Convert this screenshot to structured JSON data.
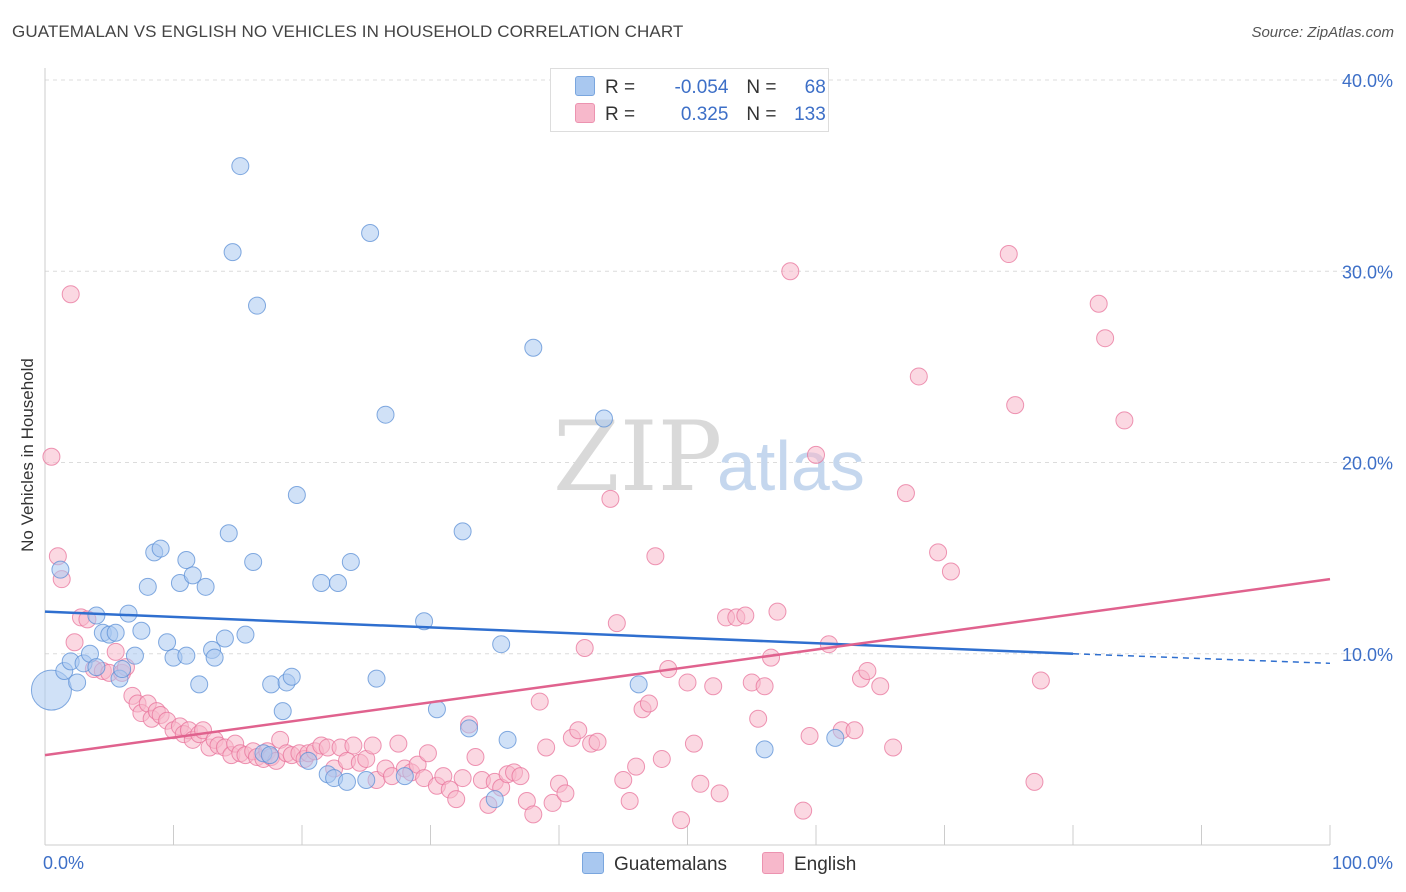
{
  "title": "GUATEMALAN VS ENGLISH NO VEHICLES IN HOUSEHOLD CORRELATION CHART",
  "source": "Source: ZipAtlas.com",
  "watermark": {
    "zip": "ZIP",
    "atlas": "atlas"
  },
  "legend": {
    "rows": [
      {
        "r_label": "R =",
        "r_value": "-0.054",
        "n_label": "N =",
        "n_value": "68",
        "color": "#a9c8f0"
      },
      {
        "r_label": "R =",
        "r_value": "0.325",
        "n_label": "N =",
        "n_value": "133",
        "color": "#f7b8cb"
      }
    ]
  },
  "bottom_legend": [
    {
      "label": "Guatemalans",
      "color": "#a9c8f0"
    },
    {
      "label": "English",
      "color": "#f7b8cb"
    }
  ],
  "chart_data": {
    "type": "scatter",
    "title": "GUATEMALAN VS ENGLISH NO VEHICLES IN HOUSEHOLD CORRELATION CHART",
    "xlabel": "",
    "ylabel": "No Vehicles in Household",
    "xlim": [
      0,
      100
    ],
    "ylim": [
      0,
      40
    ],
    "x_tick_labels": [
      "0.0%",
      "100.0%"
    ],
    "y_ticks": [
      10,
      20,
      30,
      40
    ],
    "y_tick_labels": [
      "10.0%",
      "20.0%",
      "30.0%",
      "40.0%"
    ],
    "grid": "horizontal-dashed",
    "legend_position": "top-center",
    "series": [
      {
        "name": "Guatemalans",
        "color": "#5b8fd6",
        "fill": "#a9c8f0",
        "trend": {
          "x0": 0,
          "y0": 12.2,
          "x1": 80,
          "y1": 10.0,
          "dashed_to": 100,
          "dashed_y": 9.5
        },
        "points": [
          [
            0.5,
            8.1,
            1
          ],
          [
            1.5,
            9.1,
            0
          ],
          [
            1.2,
            14.4,
            0
          ],
          [
            2,
            9.6,
            0
          ],
          [
            2.5,
            8.5,
            0
          ],
          [
            3,
            9.5,
            0
          ],
          [
            3.5,
            10.0,
            0
          ],
          [
            4,
            9.3,
            0
          ],
          [
            4,
            12.0,
            0
          ],
          [
            4.5,
            11.1,
            0
          ],
          [
            5,
            11.0,
            0
          ],
          [
            5.5,
            11.1,
            0
          ],
          [
            5.8,
            8.7,
            0
          ],
          [
            6,
            9.2,
            0
          ],
          [
            6.5,
            12.1,
            0
          ],
          [
            7,
            9.9,
            0
          ],
          [
            7.5,
            11.2,
            0
          ],
          [
            8,
            13.5,
            0
          ],
          [
            8.5,
            15.3,
            0
          ],
          [
            9,
            15.5,
            0
          ],
          [
            9.5,
            10.6,
            0
          ],
          [
            10,
            9.8,
            0
          ],
          [
            10.5,
            13.7,
            0
          ],
          [
            11,
            9.9,
            0
          ],
          [
            11,
            14.9,
            0
          ],
          [
            11.5,
            14.1,
            0
          ],
          [
            12,
            8.4,
            0
          ],
          [
            12.5,
            13.5,
            0
          ],
          [
            13,
            10.2,
            0
          ],
          [
            13.2,
            9.8,
            0
          ],
          [
            14,
            10.8,
            0
          ],
          [
            14.3,
            16.3,
            0
          ],
          [
            14.6,
            31.0,
            0
          ],
          [
            15.2,
            35.5,
            0
          ],
          [
            15.6,
            11.0,
            0
          ],
          [
            16.2,
            14.8,
            0
          ],
          [
            16.5,
            28.2,
            0
          ],
          [
            17,
            4.8,
            0
          ],
          [
            17.5,
            4.7,
            0
          ],
          [
            17.6,
            8.4,
            0
          ],
          [
            18.5,
            7.0,
            0
          ],
          [
            18.8,
            8.5,
            0
          ],
          [
            19.2,
            8.8,
            0
          ],
          [
            19.6,
            18.3,
            0
          ],
          [
            20.5,
            4.4,
            0
          ],
          [
            21.5,
            13.7,
            0
          ],
          [
            22,
            3.7,
            0
          ],
          [
            22.5,
            3.5,
            0
          ],
          [
            22.8,
            13.7,
            0
          ],
          [
            23.5,
            3.3,
            0
          ],
          [
            23.8,
            14.8,
            0
          ],
          [
            25,
            3.4,
            0
          ],
          [
            25.3,
            32.0,
            0
          ],
          [
            25.8,
            8.7,
            0
          ],
          [
            26.5,
            22.5,
            0
          ],
          [
            28,
            3.6,
            0
          ],
          [
            29.5,
            11.7,
            0
          ],
          [
            30.5,
            7.1,
            0
          ],
          [
            32.5,
            16.4,
            0
          ],
          [
            33,
            6.1,
            0
          ],
          [
            35,
            2.4,
            0
          ],
          [
            35.5,
            10.5,
            0
          ],
          [
            36,
            5.5,
            0
          ],
          [
            38,
            26.0,
            0
          ],
          [
            43.5,
            22.3,
            0
          ],
          [
            46.2,
            8.4,
            0
          ],
          [
            56,
            5.0,
            0
          ],
          [
            61.5,
            5.6,
            0
          ]
        ]
      },
      {
        "name": "English",
        "color": "#e8739b",
        "fill": "#f7b8cb",
        "trend": {
          "x0": 0,
          "y0": 4.7,
          "x1": 100,
          "y1": 13.9
        },
        "points": [
          [
            0.5,
            20.3,
            0
          ],
          [
            1,
            15.1,
            0
          ],
          [
            1.3,
            13.9,
            0
          ],
          [
            2,
            28.8,
            0
          ],
          [
            2.3,
            10.6,
            0
          ],
          [
            2.8,
            11.9,
            0
          ],
          [
            3.3,
            11.8,
            0
          ],
          [
            3.8,
            9.2,
            0
          ],
          [
            4.5,
            9.1,
            0
          ],
          [
            5,
            9.0,
            0
          ],
          [
            5.5,
            10.1,
            0
          ],
          [
            6,
            9.0,
            0
          ],
          [
            6.3,
            9.3,
            0
          ],
          [
            6.8,
            7.8,
            0
          ],
          [
            7.2,
            7.4,
            0
          ],
          [
            7.5,
            6.9,
            0
          ],
          [
            8,
            7.4,
            0
          ],
          [
            8.3,
            6.6,
            0
          ],
          [
            8.7,
            7.0,
            0
          ],
          [
            9,
            6.8,
            0
          ],
          [
            9.5,
            6.5,
            0
          ],
          [
            10,
            6.0,
            0
          ],
          [
            10.5,
            6.2,
            0
          ],
          [
            10.8,
            5.8,
            0
          ],
          [
            11.2,
            6.0,
            0
          ],
          [
            11.5,
            5.5,
            0
          ],
          [
            12,
            5.8,
            0
          ],
          [
            12.3,
            6.0,
            0
          ],
          [
            12.8,
            5.1,
            0
          ],
          [
            13.2,
            5.5,
            0
          ],
          [
            13.5,
            5.2,
            0
          ],
          [
            14,
            5.1,
            0
          ],
          [
            14.5,
            4.7,
            0
          ],
          [
            14.8,
            5.3,
            0
          ],
          [
            15.2,
            4.8,
            0
          ],
          [
            15.6,
            4.7,
            0
          ],
          [
            16.2,
            4.9,
            0
          ],
          [
            16.5,
            4.6,
            0
          ],
          [
            17,
            4.5,
            0
          ],
          [
            17.3,
            4.9,
            0
          ],
          [
            17.6,
            4.6,
            0
          ],
          [
            18,
            4.4,
            0
          ],
          [
            18.3,
            5.5,
            0
          ],
          [
            18.8,
            4.8,
            0
          ],
          [
            19.2,
            4.7,
            0
          ],
          [
            19.8,
            4.8,
            0
          ],
          [
            20.2,
            4.5,
            0
          ],
          [
            20.5,
            4.8,
            0
          ],
          [
            21,
            4.9,
            0
          ],
          [
            21.5,
            5.2,
            0
          ],
          [
            22,
            5.1,
            0
          ],
          [
            22.5,
            4.0,
            0
          ],
          [
            23,
            5.1,
            0
          ],
          [
            23.5,
            4.4,
            0
          ],
          [
            24,
            5.2,
            0
          ],
          [
            24.5,
            4.3,
            0
          ],
          [
            25,
            4.5,
            0
          ],
          [
            25.5,
            5.2,
            0
          ],
          [
            25.8,
            3.4,
            0
          ],
          [
            26.5,
            4.0,
            0
          ],
          [
            27,
            3.6,
            0
          ],
          [
            27.5,
            5.3,
            0
          ],
          [
            28,
            4.0,
            0
          ],
          [
            28.5,
            3.8,
            0
          ],
          [
            29,
            4.2,
            0
          ],
          [
            29.5,
            3.5,
            0
          ],
          [
            29.8,
            4.8,
            0
          ],
          [
            30.5,
            3.1,
            0
          ],
          [
            31,
            3.6,
            0
          ],
          [
            31.5,
            2.9,
            0
          ],
          [
            32,
            2.4,
            0
          ],
          [
            32.5,
            3.5,
            0
          ],
          [
            33,
            6.3,
            0
          ],
          [
            33.5,
            4.6,
            0
          ],
          [
            34,
            3.4,
            0
          ],
          [
            34.5,
            2.1,
            0
          ],
          [
            35,
            3.3,
            0
          ],
          [
            35.5,
            3.0,
            0
          ],
          [
            36,
            3.7,
            0
          ],
          [
            36.5,
            3.8,
            0
          ],
          [
            37,
            3.6,
            0
          ],
          [
            37.5,
            2.3,
            0
          ],
          [
            38,
            1.6,
            0
          ],
          [
            38.5,
            7.5,
            0
          ],
          [
            39,
            5.1,
            0
          ],
          [
            39.5,
            2.2,
            0
          ],
          [
            40,
            3.2,
            0
          ],
          [
            40.5,
            2.7,
            0
          ],
          [
            41,
            5.6,
            0
          ],
          [
            41.5,
            6.0,
            0
          ],
          [
            42,
            10.3,
            0
          ],
          [
            42.5,
            5.3,
            0
          ],
          [
            43,
            5.4,
            0
          ],
          [
            44,
            18.1,
            0
          ],
          [
            44.5,
            11.6,
            0
          ],
          [
            45,
            3.4,
            0
          ],
          [
            45.5,
            2.3,
            0
          ],
          [
            46,
            4.1,
            0
          ],
          [
            46.5,
            7.1,
            0
          ],
          [
            47,
            7.4,
            0
          ],
          [
            47.5,
            15.1,
            0
          ],
          [
            48,
            4.5,
            0
          ],
          [
            48.5,
            9.2,
            0
          ],
          [
            49.5,
            1.3,
            0
          ],
          [
            50,
            8.5,
            0
          ],
          [
            50.5,
            5.3,
            0
          ],
          [
            51,
            3.2,
            0
          ],
          [
            52,
            8.3,
            0
          ],
          [
            52.5,
            2.7,
            0
          ],
          [
            53,
            11.9,
            0
          ],
          [
            53.8,
            11.9,
            0
          ],
          [
            54.5,
            12.0,
            0
          ],
          [
            55,
            8.5,
            0
          ],
          [
            55.5,
            6.6,
            0
          ],
          [
            56,
            8.3,
            0
          ],
          [
            56.5,
            9.8,
            0
          ],
          [
            57,
            12.2,
            0
          ],
          [
            58,
            30.0,
            0
          ],
          [
            59,
            1.8,
            0
          ],
          [
            59.5,
            5.7,
            0
          ],
          [
            60,
            20.4,
            0
          ],
          [
            61,
            10.5,
            0
          ],
          [
            62,
            6.0,
            0
          ],
          [
            63,
            6.0,
            0
          ],
          [
            63.5,
            8.7,
            0
          ],
          [
            64,
            9.1,
            0
          ],
          [
            65,
            8.3,
            0
          ],
          [
            66,
            5.1,
            0
          ],
          [
            67,
            18.4,
            0
          ],
          [
            68,
            24.5,
            0
          ],
          [
            69.5,
            15.3,
            0
          ],
          [
            70.5,
            14.3,
            0
          ],
          [
            75,
            30.9,
            0
          ],
          [
            75.5,
            23.0,
            0
          ],
          [
            77,
            3.3,
            0
          ],
          [
            77.5,
            8.6,
            0
          ],
          [
            82,
            28.3,
            0
          ],
          [
            82.5,
            26.5,
            0
          ],
          [
            84,
            22.2,
            0
          ]
        ]
      }
    ]
  }
}
